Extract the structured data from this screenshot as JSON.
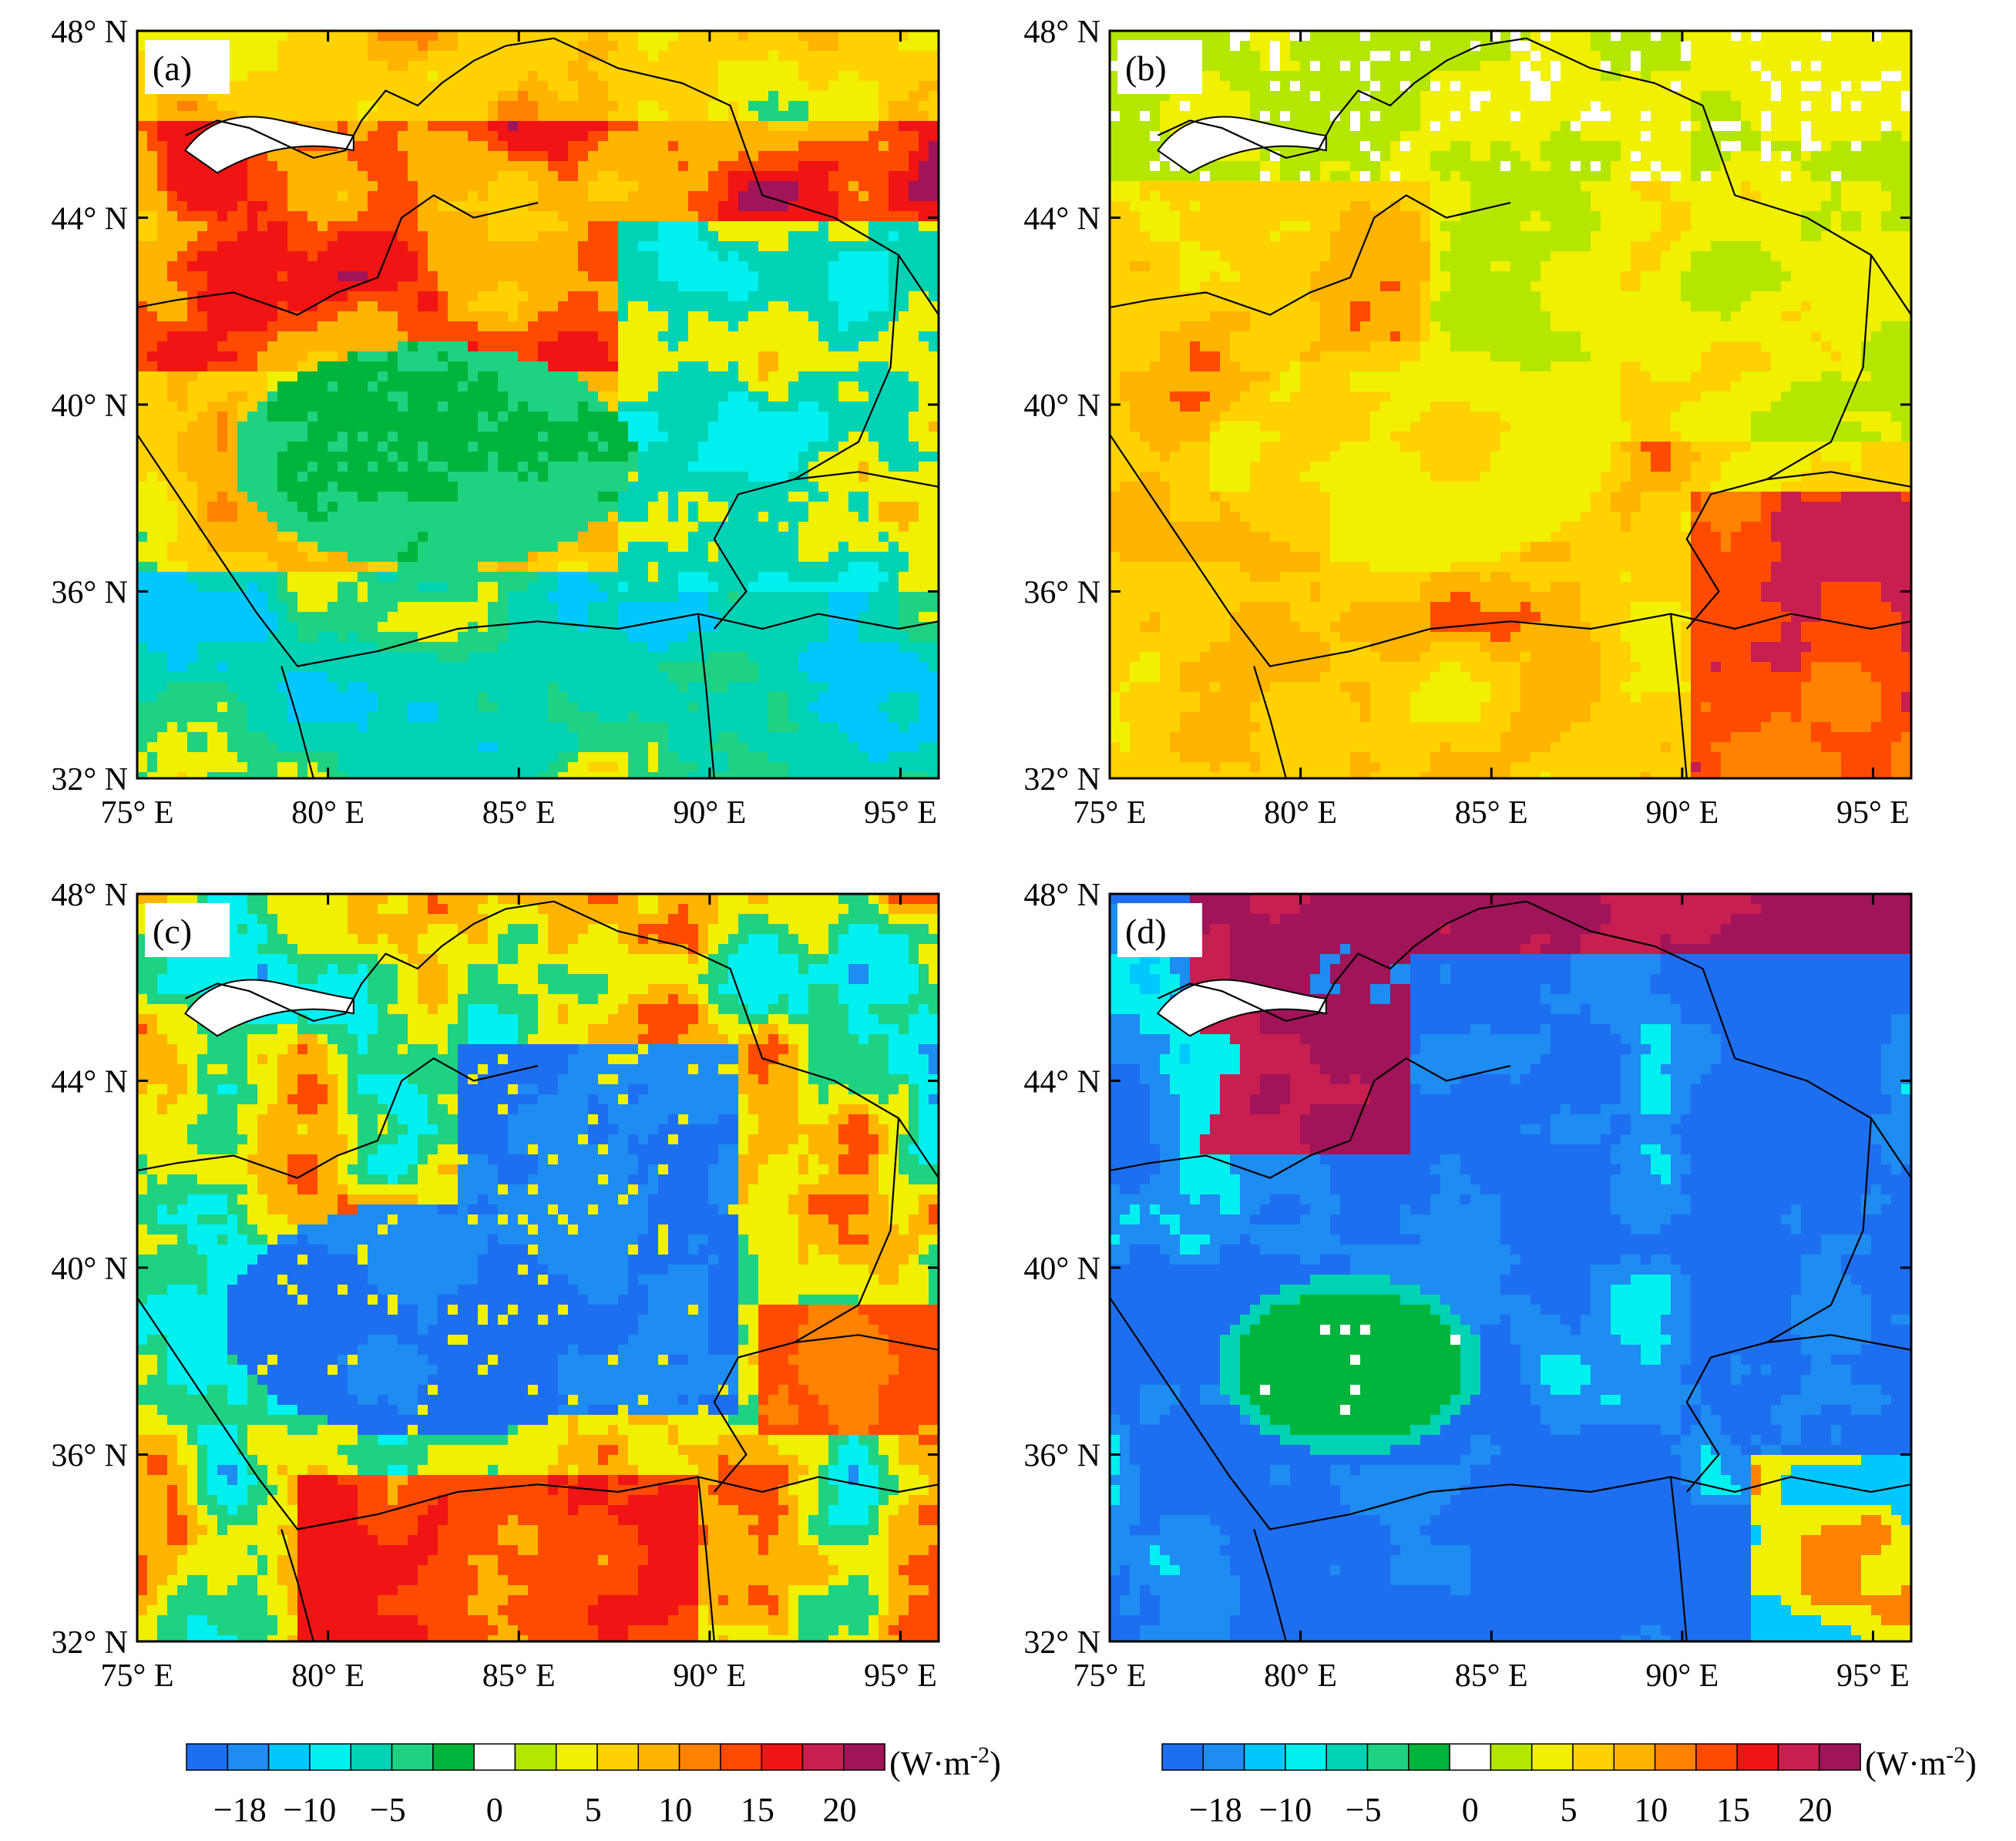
{
  "panels": [
    {
      "id": "a",
      "label": "(a)",
      "pattern": "a"
    },
    {
      "id": "b",
      "label": "(b)",
      "pattern": "b"
    },
    {
      "id": "c",
      "label": "(c)",
      "pattern": "c"
    },
    {
      "id": "d",
      "label": "(d)",
      "pattern": "d"
    }
  ],
  "lat_ticks": [
    "48° N",
    "44° N",
    "40° N",
    "36° N",
    "32° N"
  ],
  "lon_ticks": [
    "75° E",
    "80° E",
    "85° E",
    "90° E",
    "95° E"
  ],
  "colorbar": {
    "unit_base": "(W·m",
    "unit_exp": "-2",
    "unit_close": ")",
    "tick_labels": [
      "−18",
      "−10",
      "−5",
      "0",
      "5",
      "10",
      "15",
      "20"
    ],
    "colors": [
      "#1e6ef0",
      "#1e8cf0",
      "#00c8ff",
      "#00f0f0",
      "#00d2b4",
      "#1ed282",
      "#00b43c",
      "#ffffff",
      "#b4e600",
      "#f0f000",
      "#ffd200",
      "#ffb400",
      "#ff8200",
      "#ff4b00",
      "#f01414",
      "#c81e50",
      "#a0145a"
    ]
  },
  "map_extent": {
    "lon_min": 75,
    "lon_max": 96,
    "lat_min": 32,
    "lat_max": 48
  }
}
